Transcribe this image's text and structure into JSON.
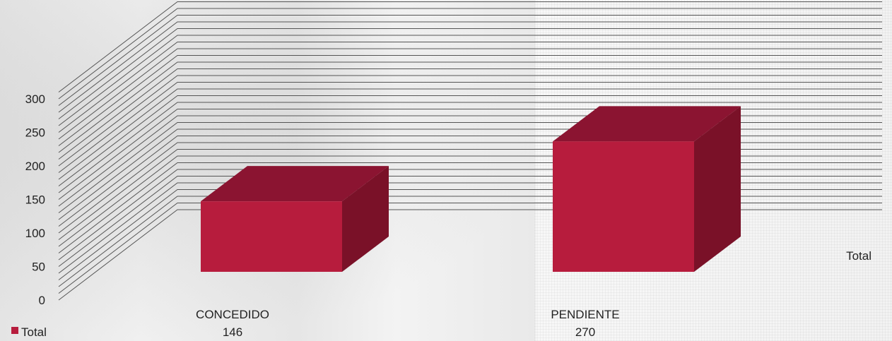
{
  "chart_data": {
    "type": "bar",
    "categories": [
      "CONCEDIDO",
      "PENDIENTE"
    ],
    "series": [
      {
        "name": "Total",
        "values": [
          146,
          270
        ]
      }
    ],
    "data_table_values": [
      "146",
      "270"
    ],
    "yticks": [
      "0",
      "50",
      "100",
      "150",
      "200",
      "250",
      "300"
    ],
    "ylim": [
      0,
      300
    ],
    "depth_axis_label": "Total",
    "grid": true,
    "three_d": true,
    "legend": {
      "position": "bottom-left",
      "label": "Total"
    },
    "colors": {
      "front": "#b71c3d",
      "top": "#8b1431",
      "side": "#7a1128",
      "legend": "#b71c3d",
      "grid": "#555555"
    }
  }
}
